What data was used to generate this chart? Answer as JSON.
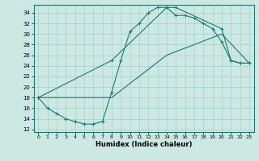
{
  "xlabel": "Humidex (Indice chaleur)",
  "bg_color": "#cce8e3",
  "line_color": "#1a7a6e",
  "grid_color": "#aacfc9",
  "xlim": [
    -0.5,
    23.5
  ],
  "ylim": [
    11.5,
    35.5
  ],
  "xticks": [
    0,
    1,
    2,
    3,
    4,
    5,
    6,
    7,
    8,
    9,
    10,
    11,
    12,
    13,
    14,
    15,
    16,
    17,
    18,
    19,
    20,
    21,
    22,
    23
  ],
  "yticks": [
    12,
    14,
    16,
    18,
    20,
    22,
    24,
    26,
    28,
    30,
    32,
    34
  ],
  "curve1_x": [
    0,
    1,
    2,
    3,
    4,
    5,
    6,
    7,
    8,
    9,
    10,
    11,
    12,
    13,
    14,
    15,
    16,
    17,
    18,
    19,
    20,
    21,
    22,
    23
  ],
  "curve1_y": [
    18,
    16,
    15,
    14,
    13.5,
    13,
    13,
    13.5,
    19,
    25,
    30.5,
    32,
    34,
    35,
    35,
    33.5,
    33.5,
    33,
    32,
    31,
    28.5,
    25,
    24.5,
    24.5
  ],
  "curve2_x": [
    0,
    8,
    14,
    15,
    20,
    21,
    22,
    23
  ],
  "curve2_y": [
    18,
    25,
    35,
    35,
    31,
    25,
    24.5,
    24.5
  ],
  "curve3_x": [
    0,
    8,
    14,
    20,
    23
  ],
  "curve3_y": [
    18,
    18,
    26,
    30,
    24.5
  ]
}
